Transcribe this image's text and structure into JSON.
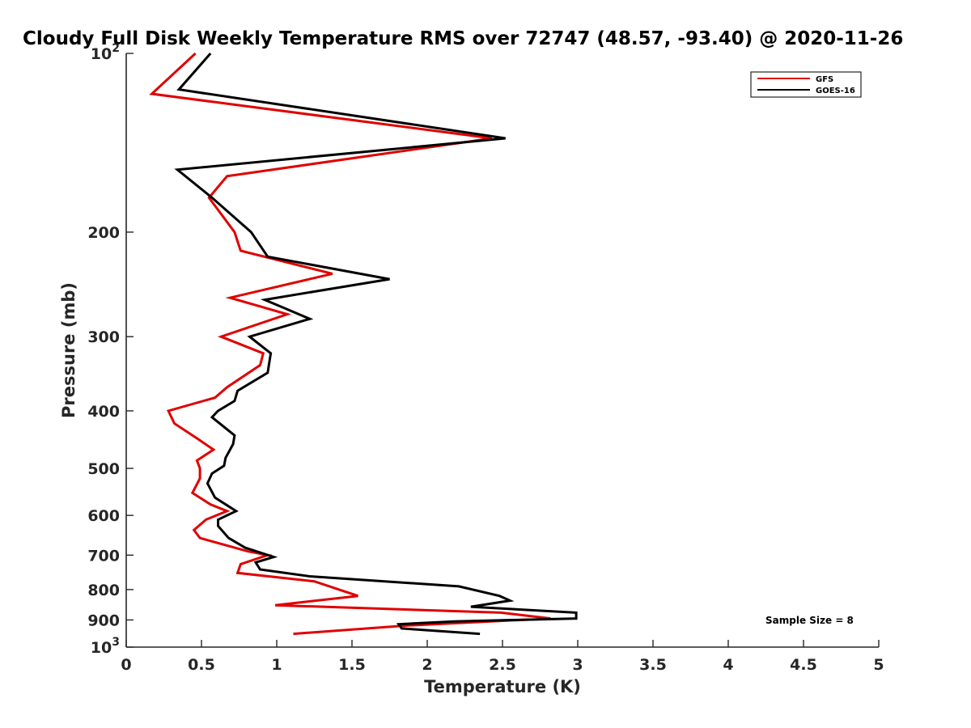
{
  "chart_data": {
    "type": "line",
    "title": "Cloudy Full Disk Weekly Temperature RMS over 72747 (48.57, -93.40) @ 2020-11-26",
    "xlabel": "Temperature (K)",
    "ylabel": "Pressure (mb)",
    "xlim": [
      0,
      5
    ],
    "ylim": [
      1000,
      100
    ],
    "yscale": "log",
    "grid": false,
    "legend_position": "top-right",
    "xticks": [
      "0",
      "0.5",
      "1",
      "1.5",
      "2",
      "2.5",
      "3",
      "3.5",
      "4",
      "4.5",
      "5"
    ],
    "yticks": [
      {
        "value": 100,
        "base": "10",
        "exp": "2"
      },
      {
        "value": 200,
        "label": "200"
      },
      {
        "value": 300,
        "label": "300"
      },
      {
        "value": 400,
        "label": "400"
      },
      {
        "value": 500,
        "label": "500"
      },
      {
        "value": 600,
        "label": "600"
      },
      {
        "value": 700,
        "label": "700"
      },
      {
        "value": 800,
        "label": "800"
      },
      {
        "value": 900,
        "label": "900"
      },
      {
        "value": 1000,
        "base": "10",
        "exp": "3"
      }
    ],
    "annotation": "Sample Size = 8",
    "series": [
      {
        "name": "GFS",
        "color": "#e00000",
        "points": [
          [
            0.46,
            100
          ],
          [
            0.17,
            117
          ],
          [
            2.43,
            139
          ],
          [
            0.67,
            161
          ],
          [
            0.55,
            175
          ],
          [
            0.72,
            200
          ],
          [
            0.76,
            215
          ],
          [
            1.37,
            235
          ],
          [
            0.69,
            258
          ],
          [
            1.07,
            275
          ],
          [
            0.63,
            300
          ],
          [
            0.91,
            320
          ],
          [
            0.89,
            335
          ],
          [
            0.67,
            365
          ],
          [
            0.59,
            380
          ],
          [
            0.28,
            400
          ],
          [
            0.32,
            420
          ],
          [
            0.47,
            445
          ],
          [
            0.58,
            465
          ],
          [
            0.47,
            485
          ],
          [
            0.49,
            500
          ],
          [
            0.49,
            520
          ],
          [
            0.44,
            550
          ],
          [
            0.56,
            575
          ],
          [
            0.67,
            590
          ],
          [
            0.53,
            610
          ],
          [
            0.45,
            635
          ],
          [
            0.49,
            655
          ],
          [
            0.81,
            690
          ],
          [
            0.94,
            700
          ],
          [
            0.76,
            725
          ],
          [
            0.74,
            750
          ],
          [
            1.25,
            775
          ],
          [
            1.54,
            820
          ],
          [
            0.99,
            850
          ],
          [
            2.49,
            875
          ],
          [
            2.82,
            895
          ],
          [
            1.86,
            920
          ],
          [
            1.11,
            950
          ]
        ]
      },
      {
        "name": "GOES-16",
        "color": "#000000",
        "points": [
          [
            0.56,
            100
          ],
          [
            0.35,
            115
          ],
          [
            2.52,
            139
          ],
          [
            0.34,
            157
          ],
          [
            0.57,
            175
          ],
          [
            0.83,
            200
          ],
          [
            0.94,
            220
          ],
          [
            1.75,
            240
          ],
          [
            0.92,
            260
          ],
          [
            1.22,
            280
          ],
          [
            0.82,
            300
          ],
          [
            0.96,
            320
          ],
          [
            0.94,
            345
          ],
          [
            0.74,
            370
          ],
          [
            0.72,
            385
          ],
          [
            0.61,
            400
          ],
          [
            0.57,
            410
          ],
          [
            0.72,
            440
          ],
          [
            0.71,
            455
          ],
          [
            0.66,
            480
          ],
          [
            0.65,
            495
          ],
          [
            0.57,
            510
          ],
          [
            0.54,
            530
          ],
          [
            0.59,
            560
          ],
          [
            0.73,
            590
          ],
          [
            0.61,
            610
          ],
          [
            0.61,
            625
          ],
          [
            0.68,
            655
          ],
          [
            0.79,
            680
          ],
          [
            0.98,
            705
          ],
          [
            0.86,
            720
          ],
          [
            0.89,
            740
          ],
          [
            1.22,
            760
          ],
          [
            2.21,
            790
          ],
          [
            2.48,
            820
          ],
          [
            2.55,
            835
          ],
          [
            2.29,
            855
          ],
          [
            2.99,
            875
          ],
          [
            2.99,
            895
          ],
          [
            2.18,
            905
          ],
          [
            1.81,
            915
          ],
          [
            1.83,
            930
          ],
          [
            2.35,
            950
          ]
        ]
      }
    ]
  }
}
